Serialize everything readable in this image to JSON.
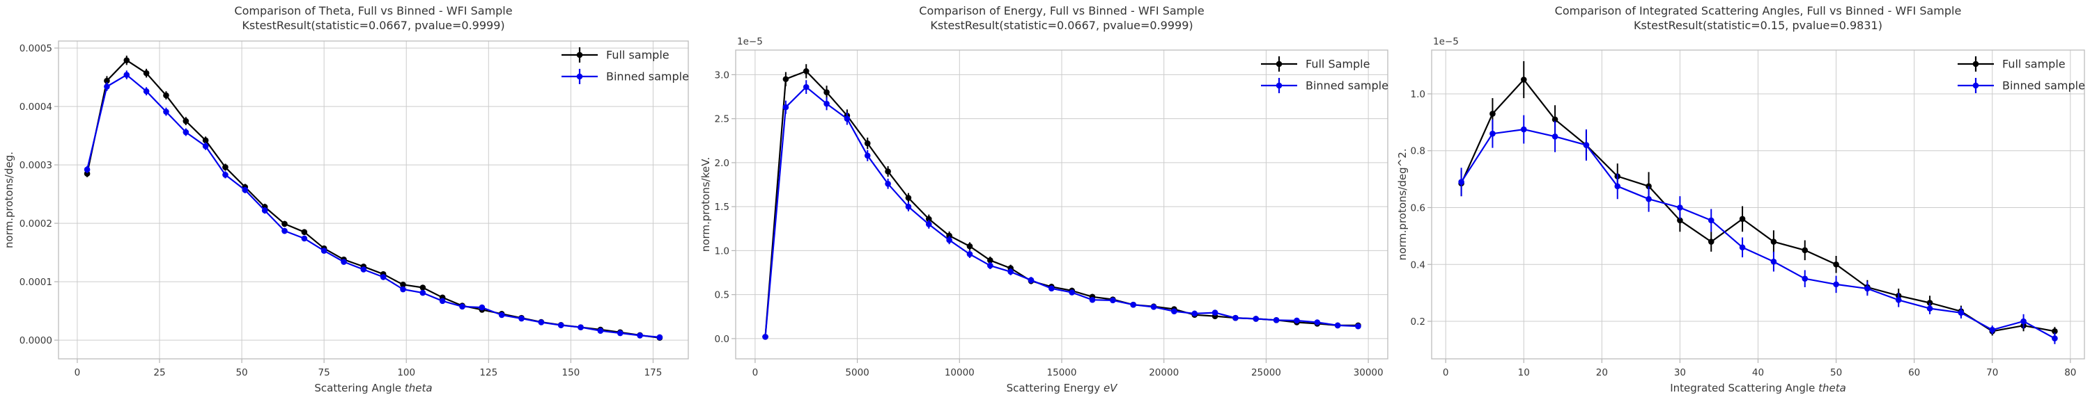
{
  "colors": {
    "background": "#ffffff",
    "full": "#000000",
    "binned": "#0000ee",
    "grid": "#cccccc",
    "spine": "#bcbcbc",
    "tick_mark": "#b3b3b3",
    "text": "#383838"
  },
  "chart_data": [
    {
      "type": "line",
      "title": "Comparison of Theta, Full vs Binned - WFI Sample",
      "subtitle": "KstestResult(statistic=0.0667, pvalue=0.9999)",
      "xlabel_text": "Scattering Angle ",
      "xlabel_math": "theta",
      "ylabel": "norm.protons/deg.",
      "y_offset_label": "",
      "grid": true,
      "legend_position": "upper right",
      "xlim": [
        -5.7,
        185.7
      ],
      "ylim": [
        -3.2e-05,
        0.000512
      ],
      "x_ticks": [
        0,
        25,
        50,
        75,
        100,
        125,
        150,
        175
      ],
      "x_tick_labels": [
        "0",
        "25",
        "50",
        "75",
        "100",
        "125",
        "150",
        "175"
      ],
      "y_ticks": [
        0,
        0.0001,
        0.0002,
        0.0003,
        0.0004,
        0.0005
      ],
      "y_tick_labels": [
        "0.0000",
        "0.0001",
        "0.0002",
        "0.0003",
        "0.0004",
        "0.0005"
      ],
      "x": [
        3,
        9,
        15,
        21,
        27,
        33,
        39,
        45,
        51,
        57,
        63,
        69,
        75,
        81,
        87,
        93,
        99,
        105,
        111,
        117,
        123,
        129,
        135,
        141,
        147,
        153,
        159,
        165,
        171,
        177
      ],
      "series": [
        {
          "name": "Full sample",
          "color_key": "full",
          "values": [
            0.000285,
            0.000444,
            0.000479,
            0.000457,
            0.000419,
            0.000375,
            0.000342,
            0.000296,
            0.000262,
            0.000228,
            0.000199,
            0.000185,
            0.000157,
            0.000138,
            0.000126,
            0.000113,
            9.5e-05,
            9e-05,
            7.3e-05,
            5.9e-05,
            5.2e-05,
            4.5e-05,
            3.8e-05,
            3.1e-05,
            2.6e-05,
            2.2e-05,
            1.8e-05,
            1.35e-05,
            8.5e-06,
            4e-06
          ],
          "errors": [
            6e-06,
            8e-06,
            8e-06,
            7.5e-06,
            7e-06,
            7e-06,
            6.5e-06,
            6e-06,
            5.5e-06,
            5.5e-06,
            5e-06,
            5e-06,
            4.5e-06,
            4e-06,
            4e-06,
            4e-06,
            3.5e-06,
            3.5e-06,
            3e-06,
            3e-06,
            3e-06,
            2.5e-06,
            2.5e-06,
            2e-06,
            2e-06,
            2e-06,
            1.5e-06,
            1.5e-06,
            1.2e-06,
            1e-06
          ]
        },
        {
          "name": "Binned sample",
          "color_key": "binned",
          "values": [
            0.000292,
            0.000434,
            0.000454,
            0.000426,
            0.000391,
            0.000356,
            0.000332,
            0.000283,
            0.000257,
            0.000222,
            0.000187,
            0.000174,
            0.000153,
            0.000134,
            0.000121,
            0.000108,
            8.7e-05,
            8.1e-05,
            6.7e-05,
            5.75e-05,
            5.6e-05,
            4.3e-05,
            3.7e-05,
            3.05e-05,
            2.55e-05,
            2.2e-05,
            1.6e-05,
            1.2e-05,
            8e-06,
            5e-06
          ],
          "errors": [
            6e-06,
            7.5e-06,
            7.5e-06,
            7e-06,
            7e-06,
            6.5e-06,
            6.5e-06,
            6e-06,
            5.5e-06,
            5.5e-06,
            5e-06,
            4.8e-06,
            4.5e-06,
            4e-06,
            4e-06,
            3.8e-06,
            3.5e-06,
            3.3e-06,
            3e-06,
            3e-06,
            3e-06,
            2.5e-06,
            2.4e-06,
            2e-06,
            2e-06,
            2e-06,
            1.5e-06,
            1.5e-06,
            1.2e-06,
            1e-06
          ]
        }
      ]
    },
    {
      "type": "line",
      "title": "Comparison of Energy, Full vs Binned - WFI Sample",
      "subtitle": "KstestResult(statistic=0.0667, pvalue=0.9999)",
      "xlabel_text": "Scattering Energy ",
      "xlabel_math": "eV",
      "ylabel": "norm.protons/keV.",
      "y_offset_label": "1e−5",
      "grid": true,
      "legend_position": "upper right",
      "xlim": [
        -950,
        30950
      ],
      "ylim": [
        -2.3e-06,
        3.28e-05
      ],
      "x_ticks": [
        0,
        5000,
        10000,
        15000,
        20000,
        25000,
        30000
      ],
      "x_tick_labels": [
        "0",
        "5000",
        "10000",
        "15000",
        "20000",
        "25000",
        "30000"
      ],
      "y_ticks": [
        0,
        5e-06,
        1e-05,
        1.5e-05,
        2e-05,
        2.5e-05,
        3e-05
      ],
      "y_tick_labels": [
        "0.0",
        "0.5",
        "1.0",
        "1.5",
        "2.0",
        "2.5",
        "3.0"
      ],
      "x": [
        500,
        1500,
        2500,
        3500,
        4500,
        5500,
        6500,
        7500,
        8500,
        9500,
        10500,
        11500,
        12500,
        13500,
        14500,
        15500,
        16500,
        17500,
        18500,
        19500,
        20500,
        21500,
        22500,
        23500,
        24500,
        25500,
        26500,
        27500,
        28500,
        29500
      ],
      "series": [
        {
          "name": "Full Sample",
          "color_key": "full",
          "values": [
            2e-07,
            2.95e-05,
            3.04e-05,
            2.8e-05,
            2.535e-05,
            2.22e-05,
            1.9e-05,
            1.6e-05,
            1.36e-05,
            1.17e-05,
            1.05e-05,
            8.9e-06,
            8e-06,
            6.55e-06,
            5.9e-06,
            5.45e-06,
            4.75e-06,
            4.45e-06,
            3.85e-06,
            3.65e-06,
            3.35e-06,
            2.7e-06,
            2.55e-06,
            2.35e-06,
            2.25e-06,
            2.1e-06,
            1.85e-06,
            1.7e-06,
            1.5e-06,
            1.5e-06
          ],
          "errors": [
            1.5e-07,
            8e-07,
            8e-07,
            7.5e-07,
            7e-07,
            6.5e-07,
            6e-07,
            5.5e-07,
            5e-07,
            4.8e-07,
            4.5e-07,
            4.2e-07,
            4e-07,
            3.6e-07,
            3.4e-07,
            3.3e-07,
            3.1e-07,
            3e-07,
            2.8e-07,
            2.7e-07,
            2.6e-07,
            2.4e-07,
            2.3e-07,
            2.2e-07,
            2.1e-07,
            2.1e-07,
            2e-07,
            1.9e-07,
            1.8e-07,
            1.8e-07
          ]
        },
        {
          "name": "Binned sample",
          "color_key": "binned",
          "values": [
            2e-07,
            2.63e-05,
            2.86e-05,
            2.67e-05,
            2.5e-05,
            2.08e-05,
            1.76e-05,
            1.5e-05,
            1.3e-05,
            1.12e-05,
            9.6e-06,
            8.3e-06,
            7.6e-06,
            6.65e-06,
            5.7e-06,
            5.25e-06,
            4.4e-06,
            4.35e-06,
            3.85e-06,
            3.6e-06,
            3.1e-06,
            2.85e-06,
            2.95e-06,
            2.35e-06,
            2.25e-06,
            2.1e-06,
            2.05e-06,
            1.85e-06,
            1.5e-06,
            1.4e-06
          ],
          "errors": [
            1.5e-07,
            7.5e-07,
            7.8e-07,
            7.3e-07,
            7e-07,
            6.3e-07,
            5.8e-07,
            5.3e-07,
            5e-07,
            4.7e-07,
            4.3e-07,
            4e-07,
            3.9e-07,
            3.6e-07,
            3.3e-07,
            3.2e-07,
            3e-07,
            2.9e-07,
            2.8e-07,
            2.7e-07,
            2.5e-07,
            2.4e-07,
            2.4e-07,
            2.2e-07,
            2.1e-07,
            2e-07,
            2e-07,
            1.9e-07,
            1.8e-07,
            1.7e-07
          ]
        }
      ]
    },
    {
      "type": "line",
      "title": "Comparison of Integrated Scattering Angles, Full vs Binned - WFI Sample",
      "subtitle": "KstestResult(statistic=0.15, pvalue=0.9831)",
      "xlabel_text": "Integrated Scattering Angle ",
      "xlabel_math": "theta",
      "ylabel": "norm.protons/deg^2.",
      "y_offset_label": "1e−5",
      "grid": true,
      "legend_position": "upper right",
      "xlim": [
        -1.8,
        81.8
      ],
      "ylim": [
        6.8e-07,
        1.154e-05
      ],
      "x_ticks": [
        0,
        10,
        20,
        30,
        40,
        50,
        60,
        70,
        80
      ],
      "x_tick_labels": [
        "0",
        "10",
        "20",
        "30",
        "40",
        "50",
        "60",
        "70",
        "80"
      ],
      "y_ticks": [
        2e-06,
        4e-06,
        6e-06,
        8e-06,
        1e-05
      ],
      "y_tick_labels": [
        "0.2",
        "0.4",
        "0.6",
        "0.8",
        "1.0"
      ],
      "x": [
        2,
        6,
        10,
        14,
        18,
        22,
        26,
        30,
        34,
        38,
        42,
        46,
        50,
        54,
        58,
        62,
        66,
        70,
        74,
        78
      ],
      "series": [
        {
          "name": "Full sample",
          "color_key": "full",
          "values": [
            6.85e-06,
            9.3e-06,
            1.05e-05,
            9.1e-06,
            8.2e-06,
            7.1e-06,
            6.75e-06,
            5.55e-06,
            4.8e-06,
            5.6e-06,
            4.8e-06,
            4.5e-06,
            4e-06,
            3.2e-06,
            2.9e-06,
            2.65e-06,
            2.35e-06,
            1.65e-06,
            1.85e-06,
            1.65e-06
          ],
          "errors": [
            4.5e-07,
            5.5e-07,
            6.5e-07,
            5e-07,
            5e-07,
            4.5e-07,
            5e-07,
            4e-07,
            3.5e-07,
            4.5e-07,
            4e-07,
            3.5e-07,
            3e-07,
            2.5e-07,
            2.5e-07,
            2.5e-07,
            2e-07,
            1.5e-07,
            2e-07,
            1.5e-07
          ]
        },
        {
          "name": "Binned sample",
          "color_key": "binned",
          "values": [
            6.9e-06,
            8.6e-06,
            8.75e-06,
            8.5e-06,
            8.2e-06,
            6.75e-06,
            6.3e-06,
            6e-06,
            5.55e-06,
            4.6e-06,
            4.1e-06,
            3.5e-06,
            3.3e-06,
            3.15e-06,
            2.75e-06,
            2.45e-06,
            2.3e-06,
            1.7e-06,
            2e-06,
            1.4e-06
          ],
          "errors": [
            5e-07,
            5e-07,
            5e-07,
            5.5e-07,
            5.5e-07,
            4.5e-07,
            4.5e-07,
            4e-07,
            4e-07,
            3.5e-07,
            3.5e-07,
            3e-07,
            3e-07,
            2.5e-07,
            2.5e-07,
            2e-07,
            2e-07,
            1.5e-07,
            2.5e-07,
            2e-07
          ]
        }
      ]
    }
  ]
}
